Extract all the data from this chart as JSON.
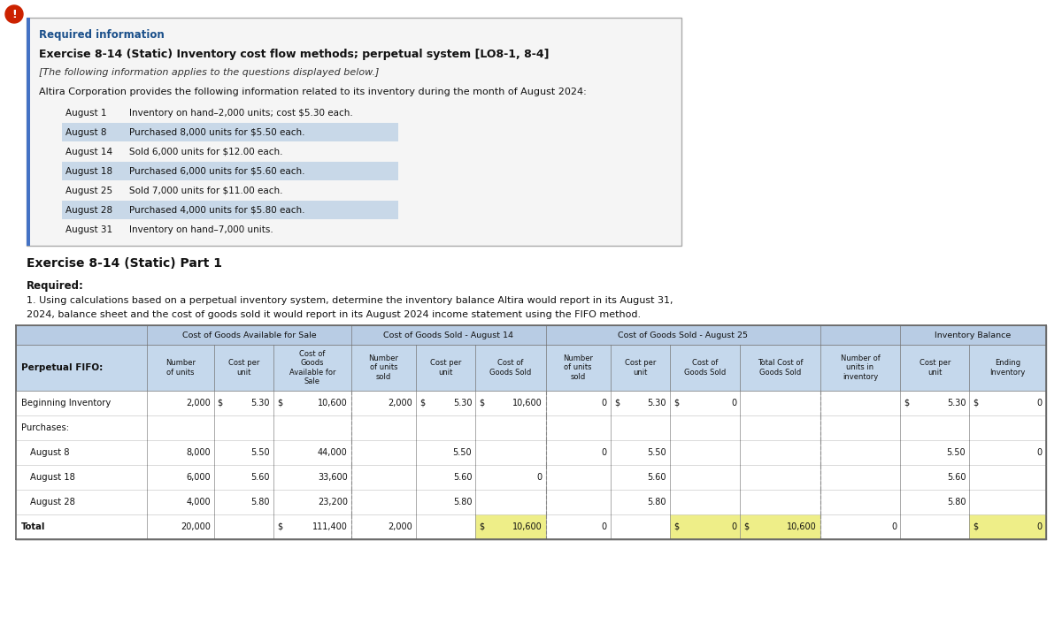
{
  "title_req_info": "Required information",
  "title_exercise": "Exercise 8-14 (Static) Inventory cost flow methods; perpetual system [LO8-1, 8-4]",
  "subtitle_italic": "[The following information applies to the questions displayed below.]",
  "intro_text": "Altira Corporation provides the following information related to its inventory during the month of August 2024:",
  "inventory_lines": [
    {
      "date": "August 1",
      "text": "Inventory on hand–2,000 units; cost $5.30 each.",
      "shaded": false
    },
    {
      "date": "August 8",
      "text": "Purchased 8,000 units for $5.50 each.",
      "shaded": true
    },
    {
      "date": "August 14",
      "text": "Sold 6,000 units for $12.00 each.",
      "shaded": false
    },
    {
      "date": "August 18",
      "text": "Purchased 6,000 units for $5.60 each.",
      "shaded": true
    },
    {
      "date": "August 25",
      "text": "Sold 7,000 units for $11.00 each.",
      "shaded": false
    },
    {
      "date": "August 28",
      "text": "Purchased 4,000 units for $5.80 each.",
      "shaded": true
    },
    {
      "date": "August 31",
      "text": "Inventory on hand–7,000 units.",
      "shaded": false
    }
  ],
  "part1_title": "Exercise 8-14 (Static) Part 1",
  "required_text": "Required:",
  "required_line1": "1. Using calculations based on a perpetual inventory system, determine the inventory balance Altira would report in its August 31,",
  "required_line2": "2024, balance sheet and the cost of goods sold it would report in its August 2024 income statement using the FIFO method.",
  "col_headers": [
    "Number\nof units",
    "Cost per\nunit",
    "Cost of\nGoods\nAvailable for\nSale",
    "Number\nof units\nsold",
    "Cost per\nunit",
    "Cost of\nGoods Sold",
    "Number\nof units\nsold",
    "Cost per\nunit",
    "Cost of\nGoods Sold",
    "Total Cost of\nGoods Sold",
    "Number of\nunits in\ninventory",
    "Cost per\nunit",
    "Ending\nInventory"
  ],
  "rows": [
    {
      "label": "Beginning Inventory",
      "cols": [
        "2,000",
        "$ 5.30",
        "$ 10,600",
        "2,000",
        "$ 5.30",
        "$ 10,600",
        "0",
        "$ 5.30",
        "$ 0",
        "",
        "",
        "$ 5.30",
        "$ 0"
      ],
      "bold": false
    },
    {
      "label": "Purchases:",
      "cols": [
        "",
        "",
        "",
        "",
        "",
        "",
        "",
        "",
        "",
        "",
        "",
        "",
        ""
      ],
      "bold": false
    },
    {
      "label": "August 8",
      "cols": [
        "8,000",
        "5.50",
        "44,000",
        "",
        "5.50",
        "",
        "0",
        "5.50",
        "",
        "",
        "",
        "5.50",
        "0"
      ],
      "bold": false
    },
    {
      "label": "August 18",
      "cols": [
        "6,000",
        "5.60",
        "33,600",
        "",
        "5.60",
        "0",
        "",
        "5.60",
        "",
        "",
        "",
        "5.60",
        ""
      ],
      "bold": false
    },
    {
      "label": "August 28",
      "cols": [
        "4,000",
        "5.80",
        "23,200",
        "",
        "5.80",
        "",
        "",
        "5.80",
        "",
        "",
        "",
        "5.80",
        ""
      ],
      "bold": false
    },
    {
      "label": "Total",
      "cols": [
        "20,000",
        "",
        "$ 111,400",
        "2,000",
        "",
        "$ 10,600",
        "0",
        "",
        "$ 0",
        "$ 10,600",
        "0",
        "",
        "$ 0"
      ],
      "bold": true
    }
  ],
  "header_bg": "#b8cce4",
  "subheader_bg": "#c5d8ec",
  "row_alt_bg": "#e8f0f7",
  "highlight_color": "#eeee88",
  "box_bg": "#f5f5f5",
  "box_border": "#aaaaaa",
  "shade_color": "#c8d8e8",
  "blue_accent": "#4472c4",
  "text_dark": "#111111",
  "text_blue": "#1a4f8a"
}
